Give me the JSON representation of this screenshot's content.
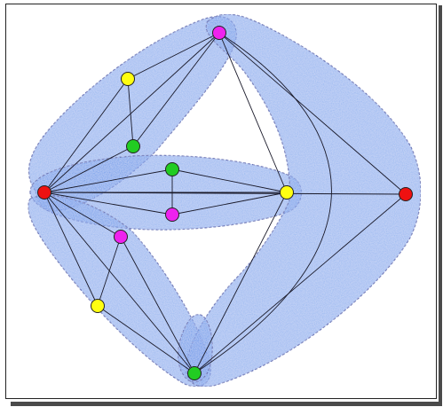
{
  "colors": {
    "hull_fill": "#5b8fe8",
    "hull_stroke": "#1f3fa8",
    "edge": "#1a1a2a",
    "node_stroke": "#222222",
    "red": "#ee1111",
    "yellow": "#ffff11",
    "green": "#22cc22",
    "magenta": "#ee22ee"
  },
  "nodes": [
    {
      "id": "m-top",
      "color": "magenta"
    },
    {
      "id": "y-upper",
      "color": "yellow"
    },
    {
      "id": "g-upper",
      "color": "green"
    },
    {
      "id": "r-left",
      "color": "red"
    },
    {
      "id": "g-mid",
      "color": "green"
    },
    {
      "id": "m-mid",
      "color": "magenta"
    },
    {
      "id": "y-right",
      "color": "yellow"
    },
    {
      "id": "r-right",
      "color": "red"
    },
    {
      "id": "m-lower",
      "color": "magenta"
    },
    {
      "id": "y-lower",
      "color": "yellow"
    },
    {
      "id": "g-bottom",
      "color": "green"
    }
  ],
  "edges": [
    [
      "r-left",
      "m-top"
    ],
    [
      "r-left",
      "y-upper"
    ],
    [
      "r-left",
      "g-upper"
    ],
    [
      "y-upper",
      "m-top"
    ],
    [
      "g-upper",
      "m-top"
    ],
    [
      "y-upper",
      "g-upper"
    ],
    [
      "r-left",
      "g-mid"
    ],
    [
      "r-left",
      "m-mid"
    ],
    [
      "r-left",
      "y-right"
    ],
    [
      "r-left",
      "r-right"
    ],
    [
      "g-mid",
      "m-mid"
    ],
    [
      "g-mid",
      "y-right"
    ],
    [
      "m-mid",
      "y-right"
    ],
    [
      "r-left",
      "m-lower"
    ],
    [
      "r-left",
      "y-lower"
    ],
    [
      "r-left",
      "g-bottom"
    ],
    [
      "m-lower",
      "y-lower"
    ],
    [
      "m-lower",
      "g-bottom"
    ],
    [
      "y-lower",
      "g-bottom"
    ],
    [
      "m-top",
      "y-right"
    ],
    [
      "m-top",
      "r-right"
    ],
    [
      "g-bottom",
      "y-right"
    ],
    [
      "g-bottom",
      "r-right"
    ],
    [
      "m-top",
      "g-bottom"
    ]
  ]
}
